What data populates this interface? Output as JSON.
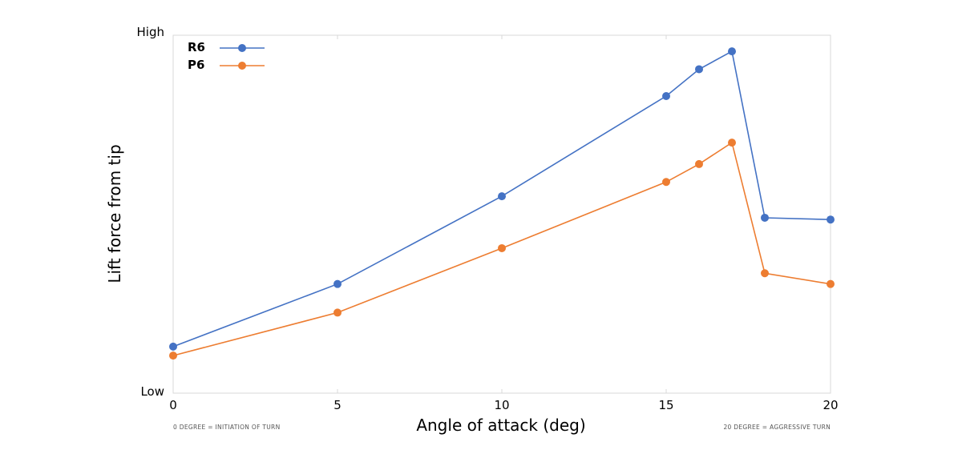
{
  "chart_data": {
    "type": "line",
    "xlabel": "Angle of attack (deg)",
    "ylabel": "Lift force from tip",
    "y_top_label": "High",
    "y_bottom_label": "Low",
    "x_ticks": [
      "0",
      "5",
      "10",
      "15",
      "20"
    ],
    "xlim": [
      0,
      20
    ],
    "ylim": [
      0,
      100
    ],
    "grid": false,
    "legend_position": "top-left",
    "note_left": "0 DEGREE = INITIATION OF TURN",
    "note_right": "20 DEGREE = AGGRESSIVE TURN",
    "x": [
      0,
      5,
      10,
      15,
      16,
      17,
      18,
      20
    ],
    "series": [
      {
        "name": "R6",
        "color": "#4472C4",
        "values": [
          13,
          30.5,
          55,
          83,
          90.5,
          95.5,
          49,
          48.5
        ]
      },
      {
        "name": "P6",
        "color": "#ED7D31",
        "values": [
          10.5,
          22.5,
          40.5,
          59,
          64,
          70,
          33.5,
          30.5
        ]
      }
    ]
  }
}
